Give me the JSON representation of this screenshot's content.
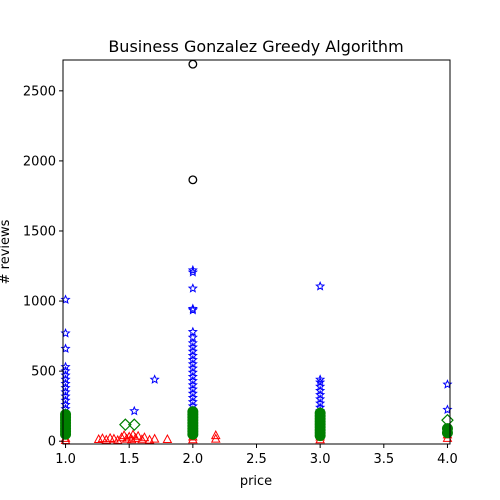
{
  "chart_data": {
    "type": "scatter",
    "title": "Business Gonzalez Greedy Algorithm",
    "xlabel": "price",
    "ylabel": "# reviews",
    "xlim": [
      0.98,
      4.02
    ],
    "ylim": [
      -20,
      2720
    ],
    "x_ticks": [
      "1.0",
      "1.5",
      "2.0",
      "2.5",
      "3.0",
      "3.5",
      "4.0"
    ],
    "x_tick_values": [
      1.0,
      1.5,
      2.0,
      2.5,
      3.0,
      3.5,
      4.0
    ],
    "y_ticks": [
      "0",
      "500",
      "1000",
      "1500",
      "2000",
      "2500"
    ],
    "y_tick_values": [
      0,
      500,
      1000,
      1500,
      2000,
      2500
    ],
    "grid": false,
    "series": [
      {
        "marker": "star",
        "color": "#0000ff",
        "points": [
          [
            1.0,
            1010
          ],
          [
            1.0,
            770
          ],
          [
            1.0,
            660
          ],
          [
            1.0,
            530
          ],
          [
            1.0,
            500
          ],
          [
            1.0,
            470
          ],
          [
            1.0,
            440
          ],
          [
            1.0,
            410
          ],
          [
            1.0,
            380
          ],
          [
            1.0,
            350
          ],
          [
            1.0,
            320
          ],
          [
            1.0,
            290
          ],
          [
            1.0,
            260
          ],
          [
            1.0,
            230
          ],
          [
            1.0,
            200
          ],
          [
            1.0,
            180
          ],
          [
            1.54,
            215
          ],
          [
            1.7,
            440
          ],
          [
            2.0,
            1220
          ],
          [
            2.0,
            1205
          ],
          [
            2.0,
            1090
          ],
          [
            2.0,
            945
          ],
          [
            2.0,
            935
          ],
          [
            2.0,
            780
          ],
          [
            2.0,
            740
          ],
          [
            2.0,
            700
          ],
          [
            2.0,
            670
          ],
          [
            2.0,
            640
          ],
          [
            2.0,
            610
          ],
          [
            2.0,
            580
          ],
          [
            2.0,
            550
          ],
          [
            2.0,
            520
          ],
          [
            2.0,
            490
          ],
          [
            2.0,
            460
          ],
          [
            2.0,
            430
          ],
          [
            2.0,
            400
          ],
          [
            2.0,
            370
          ],
          [
            2.0,
            340
          ],
          [
            2.0,
            310
          ],
          [
            2.0,
            280
          ],
          [
            2.0,
            250
          ],
          [
            2.0,
            220
          ],
          [
            3.0,
            1105
          ],
          [
            3.0,
            440
          ],
          [
            3.0,
            420
          ],
          [
            3.0,
            390
          ],
          [
            3.0,
            360
          ],
          [
            3.0,
            330
          ],
          [
            3.0,
            300
          ],
          [
            3.0,
            270
          ],
          [
            3.0,
            240
          ],
          [
            3.0,
            215
          ],
          [
            4.0,
            405
          ],
          [
            4.0,
            225
          ]
        ]
      },
      {
        "marker": "triangle",
        "color": "#ff0000",
        "points": [
          [
            1.0,
            20
          ],
          [
            1.0,
            5
          ],
          [
            1.26,
            12
          ],
          [
            1.29,
            18
          ],
          [
            1.32,
            8
          ],
          [
            1.35,
            20
          ],
          [
            1.38,
            15
          ],
          [
            1.41,
            5
          ],
          [
            1.44,
            25
          ],
          [
            1.46,
            40
          ],
          [
            1.48,
            15
          ],
          [
            1.5,
            30
          ],
          [
            1.52,
            10
          ],
          [
            1.53,
            45
          ],
          [
            1.55,
            20
          ],
          [
            1.57,
            35
          ],
          [
            1.6,
            10
          ],
          [
            1.62,
            25
          ],
          [
            1.66,
            8
          ],
          [
            1.7,
            15
          ],
          [
            1.8,
            12
          ],
          [
            2.0,
            60
          ],
          [
            2.0,
            30
          ],
          [
            2.0,
            10
          ],
          [
            2.18,
            40
          ],
          [
            2.18,
            15
          ],
          [
            3.0,
            30
          ],
          [
            3.0,
            10
          ],
          [
            4.0,
            70
          ],
          [
            4.0,
            45
          ],
          [
            4.0,
            20
          ]
        ]
      },
      {
        "marker": "diamond",
        "color": "#008000",
        "points": [
          [
            1.47,
            118
          ],
          [
            1.54,
            118
          ],
          [
            4.0,
            150
          ]
        ]
      },
      {
        "marker": "dot",
        "color": "#008000",
        "points": [
          [
            1.0,
            190
          ],
          [
            1.0,
            170
          ],
          [
            1.0,
            150
          ],
          [
            1.0,
            130
          ],
          [
            1.0,
            110
          ],
          [
            1.0,
            90
          ],
          [
            1.0,
            70
          ],
          [
            1.0,
            50
          ],
          [
            2.0,
            210
          ],
          [
            2.0,
            190
          ],
          [
            2.0,
            170
          ],
          [
            2.0,
            150
          ],
          [
            2.0,
            130
          ],
          [
            2.0,
            110
          ],
          [
            2.0,
            90
          ],
          [
            2.0,
            70
          ],
          [
            2.0,
            50
          ],
          [
            3.0,
            200
          ],
          [
            3.0,
            180
          ],
          [
            3.0,
            160
          ],
          [
            3.0,
            140
          ],
          [
            3.0,
            120
          ],
          [
            3.0,
            100
          ],
          [
            3.0,
            80
          ],
          [
            3.0,
            60
          ],
          [
            3.0,
            40
          ],
          [
            4.0,
            90
          ],
          [
            4.0,
            60
          ]
        ]
      },
      {
        "marker": "circle-open",
        "color": "#000000",
        "points": [
          [
            2.0,
            2690
          ],
          [
            2.0,
            1865
          ]
        ]
      }
    ]
  }
}
